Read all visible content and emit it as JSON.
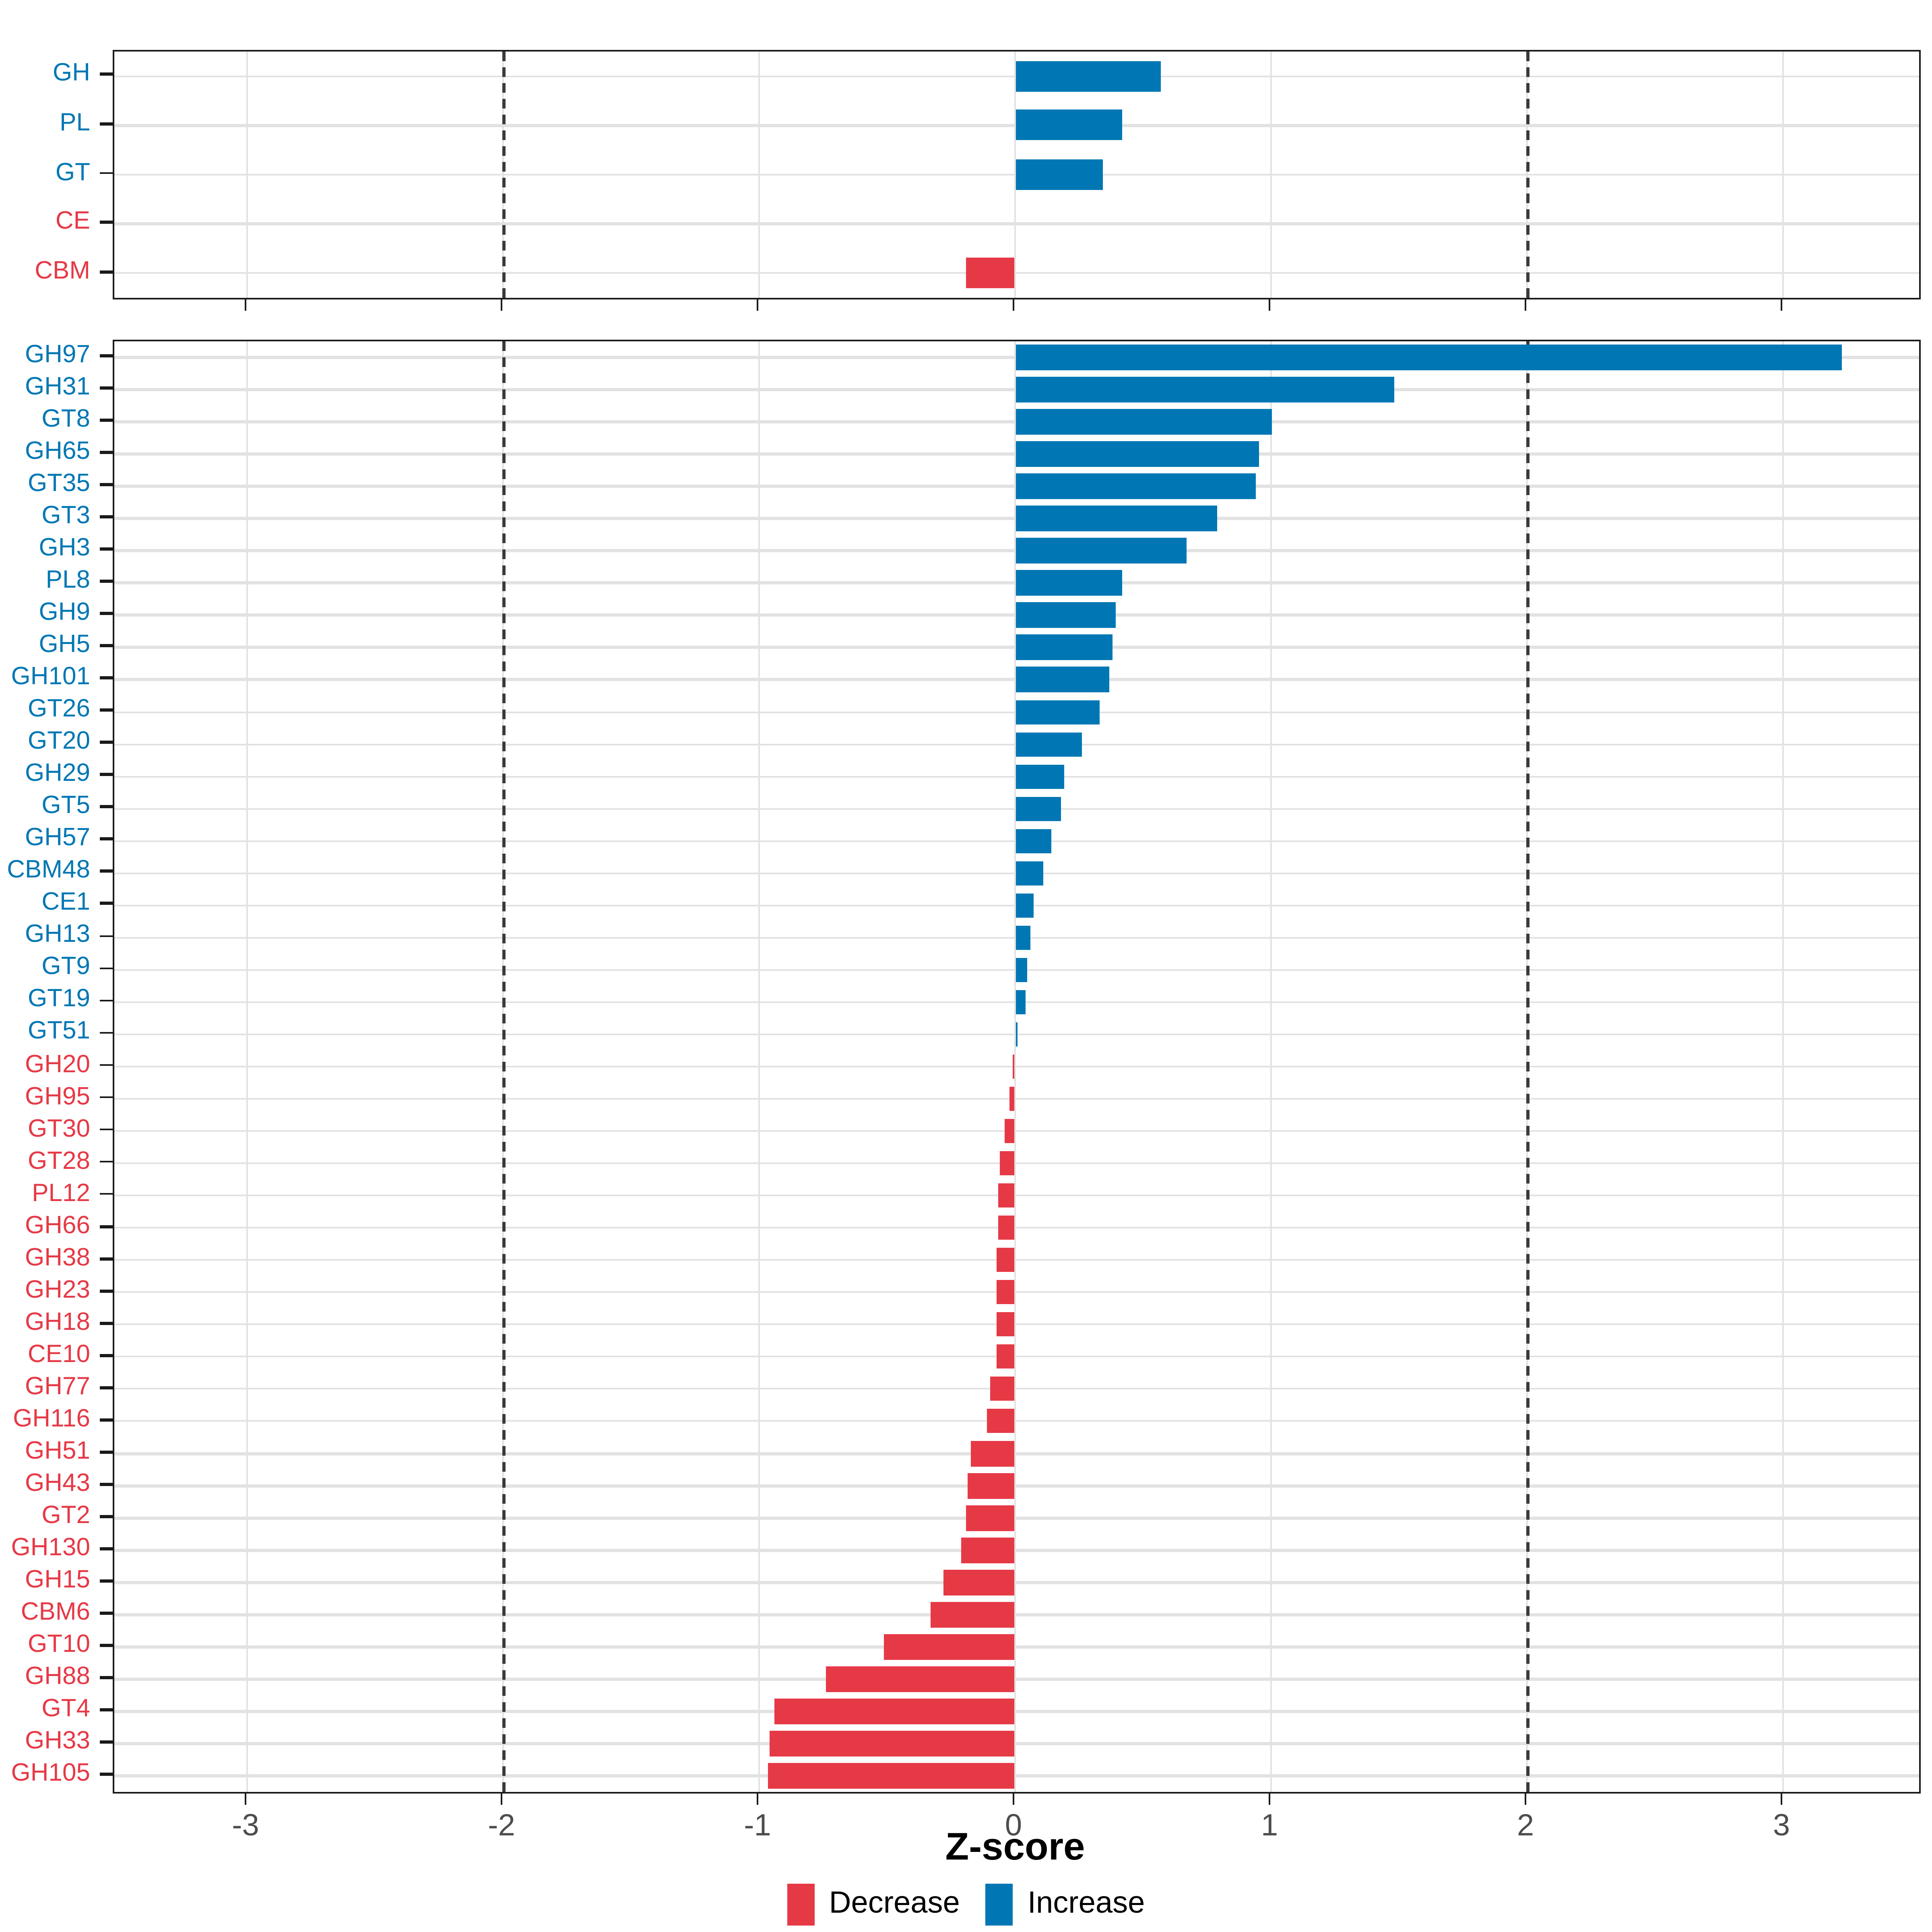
{
  "figure": {
    "xlabel": "Z-score",
    "legend": [
      {
        "label": "Decrease",
        "color": "#E63946"
      },
      {
        "label": "Increase",
        "color": "#0077B4"
      }
    ],
    "colors": {
      "increase": "#0077B4",
      "decrease": "#E63946",
      "grid": "#E2E2E2",
      "axis": "#1a1a1a",
      "tick_label": "#4D4D4D",
      "ref_line": "#3A3A3A"
    }
  },
  "chart_data": [
    {
      "type": "bar",
      "orientation": "horizontal",
      "panel": "top-summary",
      "title": "",
      "xlabel": "Z-score",
      "categories": [
        "GH",
        "PL",
        "GT",
        "CE",
        "CBM"
      ],
      "values": [
        0.57,
        0.42,
        0.34,
        0,
        -0.19
      ],
      "directions": [
        "increase",
        "increase",
        "increase",
        "decrease",
        "decrease"
      ],
      "xlim": [
        -3.55,
        3.55
      ],
      "xticks": [
        -3,
        -2,
        -1,
        0,
        1,
        2,
        3
      ],
      "ref_lines": [
        -2,
        2
      ],
      "grid": true,
      "legend_position": "none"
    },
    {
      "type": "bar",
      "orientation": "horizontal",
      "panel": "bottom-families",
      "title": "",
      "xlabel": "Z-score",
      "categories": [
        "GH97",
        "GH31",
        "GT8",
        "GH65",
        "GT35",
        "GT3",
        "GH3",
        "PL8",
        "GH9",
        "GH5",
        "GH101",
        "GT26",
        "GT20",
        "GH29",
        "GT5",
        "GH57",
        "CBM48",
        "CE1",
        "GH13",
        "GT9",
        "GT19",
        "GT51",
        "GH20",
        "GH95",
        "GT30",
        "GT28",
        "PL12",
        "GH66",
        "GH38",
        "GH23",
        "GH18",
        "CE10",
        "GH77",
        "GH116",
        "GH51",
        "GH43",
        "GT2",
        "GH130",
        "GH15",
        "CBM6",
        "GT10",
        "GH88",
        "GT4",
        "GH33",
        "GH105"
      ],
      "values": [
        3.23,
        1.48,
        1.0,
        0.95,
        0.94,
        0.79,
        0.67,
        0.42,
        0.39,
        0.38,
        0.37,
        0.33,
        0.26,
        0.19,
        0.18,
        0.14,
        0.11,
        0.07,
        0.06,
        0.05,
        0.04,
        0.012,
        -0.012,
        -0.02,
        -0.04,
        -0.057,
        -0.065,
        -0.068,
        -0.07,
        -0.071,
        -0.072,
        -0.073,
        -0.098,
        -0.107,
        -0.17,
        -0.187,
        -0.19,
        -0.21,
        -0.28,
        -0.33,
        -0.51,
        -0.74,
        -0.94,
        -0.96,
        -0.965
      ],
      "directions": [
        "increase",
        "increase",
        "increase",
        "increase",
        "increase",
        "increase",
        "increase",
        "increase",
        "increase",
        "increase",
        "increase",
        "increase",
        "increase",
        "increase",
        "increase",
        "increase",
        "increase",
        "increase",
        "increase",
        "increase",
        "increase",
        "increase",
        "decrease",
        "decrease",
        "decrease",
        "decrease",
        "decrease",
        "decrease",
        "decrease",
        "decrease",
        "decrease",
        "decrease",
        "decrease",
        "decrease",
        "decrease",
        "decrease",
        "decrease",
        "decrease",
        "decrease",
        "decrease",
        "decrease",
        "decrease",
        "decrease",
        "decrease",
        "decrease"
      ],
      "xlim": [
        -3.55,
        3.55
      ],
      "xticks": [
        -3,
        -2,
        -1,
        0,
        1,
        2,
        3
      ],
      "ref_lines": [
        -2,
        2
      ],
      "grid": true,
      "legend_position": "bottom"
    }
  ]
}
